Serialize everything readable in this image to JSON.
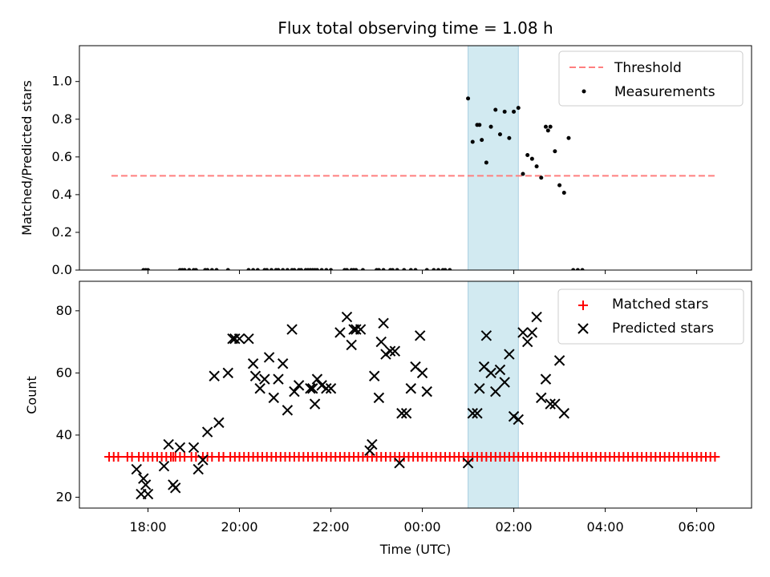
{
  "chart_data": [
    {
      "type": "scatter",
      "title": "Flux total observing time = 1.08 h",
      "xlabel": "",
      "ylabel": "Matched/Predicted stars",
      "xlim_hours": [
        16.5,
        31.2
      ],
      "ylim": [
        0,
        1.19
      ],
      "yticks": [
        0,
        0.2,
        0.4,
        0.6,
        0.8,
        1.0
      ],
      "ytick_labels": [
        "0.0",
        "0.2",
        "0.4",
        "0.6",
        "0.8",
        "1.0"
      ],
      "highlight_span_hours": [
        25.0,
        26.1
      ],
      "threshold": {
        "name": "Threshold",
        "value": 0.5,
        "x_range_hours": [
          17.2,
          30.4
        ]
      },
      "legend": [
        "Threshold",
        "Measurements"
      ],
      "series": [
        {
          "name": "Measurements",
          "x": [
            17.9,
            17.95,
            18.0,
            18.7,
            18.75,
            18.8,
            18.9,
            19.0,
            19.05,
            19.25,
            19.3,
            19.4,
            19.5,
            19.75,
            20.2,
            20.3,
            20.4,
            20.55,
            20.6,
            20.7,
            20.8,
            20.85,
            20.95,
            21.05,
            21.15,
            21.2,
            21.3,
            21.35,
            21.45,
            21.5,
            21.55,
            21.6,
            21.65,
            21.7,
            21.8,
            21.9,
            22.0,
            22.3,
            22.35,
            22.45,
            22.5,
            22.55,
            22.7,
            23.0,
            23.05,
            23.15,
            23.3,
            23.35,
            23.45,
            23.6,
            23.75,
            23.85,
            24.1,
            24.25,
            24.35,
            24.45,
            24.5,
            24.6,
            25.0,
            25.1,
            25.2,
            25.25,
            25.3,
            25.4,
            25.5,
            25.6,
            25.7,
            25.8,
            25.9,
            26.0,
            26.1,
            26.2,
            26.3,
            26.4,
            26.5,
            26.6,
            26.7,
            26.75,
            26.8,
            26.9,
            27.0,
            27.1,
            27.2,
            27.3,
            27.4,
            27.5
          ],
          "y": [
            0,
            0,
            0,
            0,
            0,
            0,
            0,
            0,
            0,
            0,
            0,
            0,
            0,
            0,
            0,
            0,
            0,
            0,
            0,
            0,
            0,
            0,
            0,
            0,
            0,
            0,
            0,
            0,
            0,
            0,
            0,
            0,
            0,
            0,
            0,
            0,
            0,
            0,
            0,
            0,
            0,
            0,
            0,
            0,
            0,
            0,
            0,
            0,
            0,
            0,
            0,
            0,
            0,
            0,
            0,
            0,
            0,
            0,
            0.91,
            0.68,
            0.77,
            0.77,
            0.69,
            0.57,
            0.76,
            0.85,
            0.72,
            0.84,
            0.7,
            0.84,
            0.86,
            0.51,
            0.61,
            0.59,
            0.55,
            0.49,
            0.76,
            0.74,
            0.76,
            0.63,
            0.45,
            0.41,
            0.7,
            0,
            0,
            0
          ]
        }
      ]
    },
    {
      "type": "scatter",
      "title": "",
      "xlabel": "Time (UTC)",
      "ylabel": "Count",
      "xlim_hours": [
        16.5,
        31.2
      ],
      "ylim": [
        16.5,
        89.5
      ],
      "yticks": [
        20,
        40,
        60,
        80
      ],
      "ytick_labels": [
        "20",
        "40",
        "60",
        "80"
      ],
      "xticks_hours": [
        18,
        20,
        22,
        24,
        26,
        28,
        30
      ],
      "xtick_labels": [
        "18:00",
        "20:00",
        "22:00",
        "00:00",
        "02:00",
        "04:00",
        "06:00"
      ],
      "highlight_span_hours": [
        25.0,
        26.1
      ],
      "legend": [
        "Matched stars",
        "Predicted stars"
      ],
      "series": [
        {
          "name": "Matched stars",
          "marker": "plus",
          "color": "#ff0000",
          "x": [
            17.15,
            17.25,
            17.35,
            17.55,
            17.65,
            17.8,
            17.9,
            18.0,
            18.1,
            18.2,
            18.3,
            18.4,
            18.5,
            18.55,
            18.6,
            18.7,
            18.8,
            18.95,
            19.05,
            19.2,
            19.3,
            19.4,
            19.55,
            19.65,
            19.8,
            19.9,
            20.0,
            20.1,
            20.2,
            20.3,
            20.4,
            20.5,
            20.6,
            20.7,
            20.8,
            20.9,
            21.0,
            21.1,
            21.2,
            21.3,
            21.4,
            21.5,
            21.6,
            21.7,
            21.8,
            21.9,
            22.0,
            22.1,
            22.2,
            22.3,
            22.4,
            22.5,
            22.6,
            22.7,
            22.8,
            22.9,
            23.0,
            23.1,
            23.2,
            23.3,
            23.4,
            23.5,
            23.6,
            23.7,
            23.8,
            23.9,
            24.0,
            24.1,
            24.2,
            24.3,
            24.4,
            24.5,
            24.6,
            24.7,
            24.8,
            24.9,
            25.0,
            25.1,
            25.2,
            25.3,
            25.4,
            25.5,
            25.6,
            25.7,
            25.8,
            25.9,
            26.0,
            26.1,
            26.2,
            26.3,
            26.4,
            26.5,
            26.6,
            26.7,
            26.8,
            26.9,
            27.0,
            27.1,
            27.2,
            27.3,
            27.4,
            27.5,
            27.6,
            27.7,
            27.8,
            27.9,
            28.0,
            28.1,
            28.2,
            28.3,
            28.4,
            28.5,
            28.6,
            28.7,
            28.8,
            28.9,
            29.0,
            29.1,
            29.2,
            29.3,
            29.4,
            29.5,
            29.6,
            29.7,
            29.8,
            29.9,
            30.0,
            30.1,
            30.2,
            30.3,
            30.4
          ],
          "y": [
            33,
            33,
            33,
            33,
            33,
            33,
            33,
            33,
            33,
            33,
            33,
            33,
            33,
            33,
            33,
            33,
            33,
            33,
            33,
            33,
            33,
            33,
            33,
            33,
            33,
            33,
            33,
            33,
            33,
            33,
            33,
            33,
            33,
            33,
            33,
            33,
            33,
            33,
            33,
            33,
            33,
            33,
            33,
            33,
            33,
            33,
            33,
            33,
            33,
            33,
            33,
            33,
            33,
            33,
            33,
            33,
            33,
            33,
            33,
            33,
            33,
            33,
            33,
            33,
            33,
            33,
            33,
            33,
            33,
            33,
            33,
            33,
            33,
            33,
            33,
            33,
            33,
            33,
            33,
            33,
            33,
            33,
            33,
            33,
            33,
            33,
            33,
            33,
            33,
            33,
            33,
            33,
            33,
            33,
            33,
            33,
            33,
            33,
            33,
            33,
            33,
            33,
            33,
            33,
            33,
            33,
            33,
            33,
            33,
            33,
            33,
            33,
            33,
            33,
            33,
            33,
            33,
            33,
            33,
            33,
            33,
            33,
            33,
            33,
            33,
            33,
            33,
            33,
            33,
            33,
            33
          ]
        },
        {
          "name": "Predicted stars",
          "marker": "x",
          "color": "#000000",
          "x": [
            17.75,
            17.85,
            17.9,
            17.95,
            18.0,
            18.35,
            18.45,
            18.55,
            18.6,
            18.7,
            19.0,
            19.1,
            19.2,
            19.3,
            19.45,
            19.55,
            19.75,
            19.85,
            19.9,
            20.0,
            20.2,
            20.3,
            20.35,
            20.45,
            20.55,
            20.65,
            20.75,
            20.85,
            20.95,
            21.05,
            21.15,
            21.2,
            21.3,
            21.55,
            21.6,
            21.65,
            21.7,
            21.8,
            21.9,
            22.0,
            22.2,
            22.35,
            22.45,
            22.5,
            22.55,
            22.65,
            22.85,
            22.9,
            22.95,
            23.05,
            23.1,
            23.15,
            23.2,
            23.3,
            23.4,
            23.5,
            23.55,
            23.65,
            23.75,
            23.85,
            23.95,
            24.0,
            24.1,
            25.0,
            25.1,
            25.2,
            25.25,
            25.35,
            25.4,
            25.5,
            25.6,
            25.7,
            25.8,
            25.9,
            26.0,
            26.1,
            26.2,
            26.3,
            26.4,
            26.5,
            26.6,
            26.7,
            26.8,
            26.9,
            27.0,
            27.1
          ],
          "y": [
            29,
            21,
            26,
            24,
            21,
            30,
            37,
            24,
            23,
            36,
            36,
            29,
            32,
            41,
            59,
            44,
            60,
            71,
            71,
            71,
            71,
            63,
            59,
            55,
            58,
            65,
            52,
            58,
            63,
            48,
            74,
            54,
            56,
            55,
            55,
            50,
            58,
            56,
            55,
            55,
            73,
            78,
            69,
            74,
            74,
            74,
            35,
            37,
            59,
            52,
            70,
            76,
            66,
            67,
            67,
            31,
            47,
            47,
            55,
            62,
            72,
            60,
            54,
            31,
            47,
            47,
            55,
            62,
            72,
            60,
            54,
            61,
            57,
            66,
            46,
            45,
            73,
            70,
            73,
            78,
            52,
            58,
            50,
            50,
            64,
            47
          ]
        }
      ]
    }
  ]
}
